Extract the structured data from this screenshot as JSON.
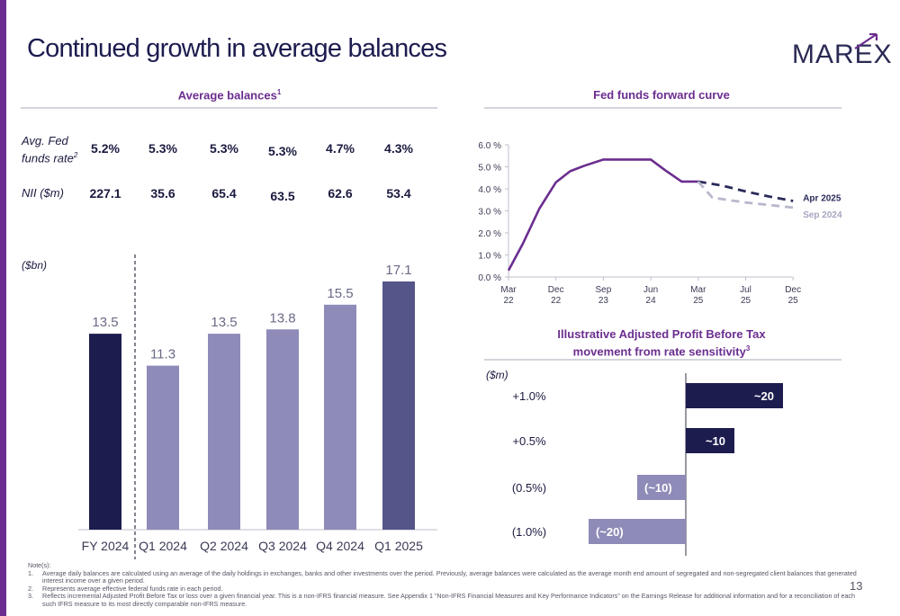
{
  "title": "Continued growth in average balances",
  "logo_text": "MAREX",
  "page_number": "13",
  "colors": {
    "purple": "#6b2d8f",
    "navy": "#1c1c4f",
    "bar_light": "#8e8bb8",
    "bar_mid": "#55558a",
    "grey_dash": "#b8b8cc"
  },
  "left_panel": {
    "heading": "Average balances",
    "heading_sup": "1",
    "fed_label": "Avg. Fed funds rate",
    "fed_label_sup": "2",
    "nii_label": "NII ($m)",
    "unit": "($bn)",
    "fed_values": [
      "5.2%",
      "5.3%",
      "5.3%",
      "5.3%",
      "4.7%",
      "4.3%"
    ],
    "nii_values": [
      "227.1",
      "35.6",
      "65.4",
      "63.5",
      "62.6",
      "53.4"
    ]
  },
  "chart_data": [
    {
      "type": "bar",
      "categories": [
        "FY 2024",
        "Q1 2024",
        "Q2 2024",
        "Q3 2024",
        "Q4 2024",
        "Q1 2025"
      ],
      "values": [
        13.5,
        11.3,
        13.5,
        13.8,
        15.5,
        17.1
      ],
      "value_labels": [
        "13.5",
        "11.3",
        "13.5",
        "13.8",
        "15.5",
        "17.1"
      ],
      "bar_colors": [
        "#1c1c4f",
        "#8e8bb8",
        "#8e8bb8",
        "#8e8bb8",
        "#8e8bb8",
        "#55558a"
      ],
      "ylim": [
        0,
        17.1
      ],
      "ylabel": "($bn)"
    },
    {
      "type": "line",
      "title": "Fed funds forward curve",
      "x_ticks": [
        "Mar 22",
        "Dec 22",
        "Sep 23",
        "Jun 24",
        "Mar 25",
        "Jul 25",
        "Dec 25"
      ],
      "y_ticks": [
        "0.0 %",
        "1.0 %",
        "2.0 %",
        "3.0 %",
        "4.0 %",
        "5.0 %",
        "6.0 %"
      ],
      "ylim": [
        0,
        6
      ],
      "series": [
        {
          "name": "",
          "style": "solid",
          "color": "#6b2d8f",
          "points": [
            [
              0,
              0.3
            ],
            [
              0.3,
              1.5
            ],
            [
              0.65,
              3.1
            ],
            [
              1.0,
              4.3
            ],
            [
              1.3,
              4.8
            ],
            [
              1.6,
              5.05
            ],
            [
              2.0,
              5.33
            ],
            [
              2.5,
              5.33
            ],
            [
              3.0,
              5.33
            ],
            [
              3.3,
              4.85
            ],
            [
              3.65,
              4.33
            ],
            [
              4.0,
              4.33
            ]
          ]
        },
        {
          "name": "Apr 2025",
          "style": "dashed",
          "color": "#2a2a5a",
          "points": [
            [
              4.0,
              4.33
            ],
            [
              4.5,
              4.15
            ],
            [
              5.0,
              3.88
            ],
            [
              5.5,
              3.65
            ],
            [
              6.0,
              3.45
            ]
          ]
        },
        {
          "name": "Sep 2024",
          "style": "dashed",
          "color": "#b8b8cc",
          "points": [
            [
              4.0,
              4.33
            ],
            [
              4.3,
              3.6
            ],
            [
              5.0,
              3.38
            ],
            [
              6.0,
              3.15
            ]
          ]
        }
      ]
    },
    {
      "type": "bar",
      "orientation": "horizontal",
      "title": "Illustrative Adjusted Profit Before Tax movement from rate sensitivity",
      "title_line1": "Illustrative Adjusted Profit Before Tax",
      "title_line2": "movement from rate sensitivity",
      "title_sup": "3",
      "unit": "($m)",
      "categories": [
        "+1.0%",
        "+0.5%",
        "(0.5%)",
        "(1.0%)"
      ],
      "values": [
        20,
        10,
        -10,
        -20
      ],
      "value_labels": [
        "~20",
        "~10",
        "(~10)",
        "(~20)"
      ],
      "bar_colors": [
        "#1c1c4f",
        "#1c1c4f",
        "#8e8bb8",
        "#8e8bb8"
      ]
    }
  ],
  "notes": {
    "heading": "Note(s):",
    "items": [
      {
        "k": "1.",
        "t": "Average daily balances are calculated using an average of the daily holdings in exchanges, banks and other investments over the period.  Previously, average balances were calculated as the average month end amount of segregated and non-segregated client balances that generated interest income over a given period."
      },
      {
        "k": "2.",
        "t": "Represents average effective federal funds rate in each period."
      },
      {
        "k": "3.",
        "t": "Reflects incremental Adjusted Profit Before Tax or loss over a given financial year. This is a non-IFRS financial measure.  See Appendix 1 “Non-IFRS Financial Measures and Key Performance Indicators” on the Earnings Release for additional information and for a reconciliation of each such IFRS measure to its most directly comparable non-IFRS measure."
      }
    ]
  }
}
